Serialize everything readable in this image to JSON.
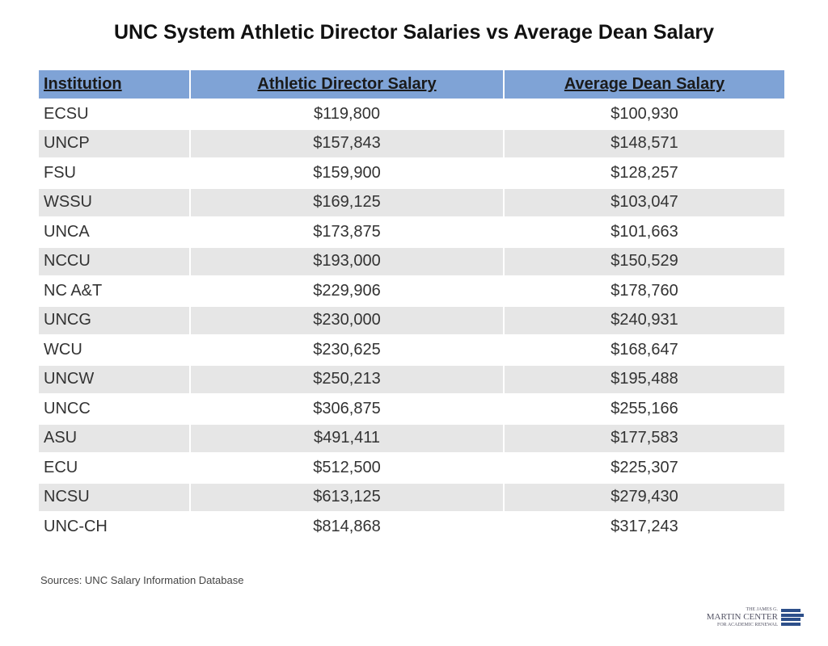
{
  "title": "UNC System Athletic Director Salaries vs Average Dean Salary",
  "source": "Sources: UNC Salary Information Database",
  "logo": {
    "line1": "THE JAMES G.",
    "line2": "MARTIN CENTER",
    "line3": "FOR ACADEMIC RENEWAL"
  },
  "colors": {
    "header": "#7fa3d6",
    "stripe": "#e6e6e6"
  },
  "chart_data": {
    "type": "table",
    "title": "UNC System Athletic Director Salaries vs Average Dean Salary",
    "columns": [
      "Institution",
      "Athletic Director Salary",
      "Average Dean Salary"
    ],
    "rows": [
      [
        "ECSU",
        "$119,800",
        "$100,930"
      ],
      [
        "UNCP",
        "$157,843",
        "$148,571"
      ],
      [
        "FSU",
        "$159,900",
        "$128,257"
      ],
      [
        "WSSU",
        "$169,125",
        "$103,047"
      ],
      [
        "UNCA",
        "$173,875",
        "$101,663"
      ],
      [
        "NCCU",
        "$193,000",
        "$150,529"
      ],
      [
        "NC A&T",
        "$229,906",
        "$178,760"
      ],
      [
        "UNCG",
        "$230,000",
        "$240,931"
      ],
      [
        "WCU",
        "$230,625",
        "$168,647"
      ],
      [
        "UNCW",
        "$250,213",
        "$195,488"
      ],
      [
        "UNCC",
        "$306,875",
        "$255,166"
      ],
      [
        "ASU",
        "$491,411",
        "$177,583"
      ],
      [
        "ECU",
        "$512,500",
        "$225,307"
      ],
      [
        "NCSU",
        "$613,125",
        "$279,430"
      ],
      [
        "UNC-CH",
        "$814,868",
        "$317,243"
      ]
    ]
  }
}
